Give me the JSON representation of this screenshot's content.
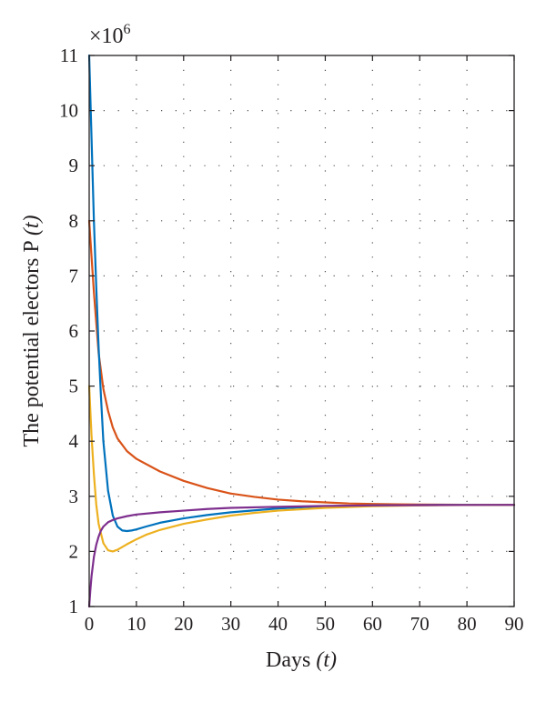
{
  "chart_data": {
    "type": "line",
    "title": "",
    "xlabel": "Days",
    "xlabel_var": "(t)",
    "ylabel": "The potential electors P",
    "ylabel_var": "(t)",
    "y_multiplier_label": "×10",
    "y_multiplier_exp": "6",
    "xlim": [
      0,
      90
    ],
    "ylim": [
      1,
      11
    ],
    "x_ticks": [
      0,
      10,
      20,
      30,
      40,
      50,
      60,
      70,
      80,
      90
    ],
    "y_ticks": [
      1,
      2,
      3,
      4,
      5,
      6,
      7,
      8,
      9,
      10,
      11
    ],
    "grid": true,
    "legend": "none",
    "series": [
      {
        "color": "#d95319",
        "x": [
          0,
          1,
          2,
          3,
          4,
          5,
          6,
          8,
          10,
          15,
          20,
          25,
          30,
          35,
          40,
          45,
          50,
          55,
          60,
          65,
          70,
          75,
          80,
          85,
          90
        ],
        "y": [
          8,
          6.7,
          5.6,
          4.95,
          4.55,
          4.25,
          4.05,
          3.82,
          3.68,
          3.45,
          3.28,
          3.15,
          3.05,
          2.99,
          2.94,
          2.91,
          2.89,
          2.87,
          2.86,
          2.855,
          2.85,
          2.848,
          2.846,
          2.845,
          2.845
        ]
      },
      {
        "color": "#0072bd",
        "x": [
          0,
          0.5,
          1,
          1.5,
          2,
          2.5,
          3,
          4,
          5,
          6,
          7,
          8,
          9,
          10,
          12,
          15,
          20,
          25,
          30,
          40,
          50,
          60,
          70,
          80,
          90
        ],
        "y": [
          11,
          9.5,
          8.0,
          6.8,
          5.7,
          4.8,
          4.0,
          3.1,
          2.65,
          2.45,
          2.38,
          2.37,
          2.38,
          2.4,
          2.45,
          2.52,
          2.6,
          2.66,
          2.71,
          2.78,
          2.82,
          2.835,
          2.84,
          2.845,
          2.845
        ]
      },
      {
        "color": "#edb120",
        "x": [
          0,
          0.5,
          1,
          1.5,
          2,
          3,
          4,
          5,
          6,
          7,
          8,
          10,
          12,
          15,
          20,
          25,
          30,
          35,
          40,
          50,
          60,
          70,
          80,
          90
        ],
        "y": [
          5,
          4.1,
          3.4,
          2.85,
          2.5,
          2.15,
          2.02,
          2.0,
          2.03,
          2.08,
          2.13,
          2.22,
          2.3,
          2.39,
          2.5,
          2.58,
          2.65,
          2.7,
          2.74,
          2.79,
          2.82,
          2.835,
          2.842,
          2.845
        ]
      },
      {
        "color": "#7e2f8e",
        "x": [
          0,
          0.25,
          0.5,
          1,
          1.5,
          2,
          2.5,
          3,
          4,
          5,
          6,
          8,
          10,
          15,
          20,
          25,
          30,
          40,
          50,
          60,
          70,
          80,
          90
        ],
        "y": [
          1,
          1.3,
          1.55,
          1.9,
          2.12,
          2.27,
          2.38,
          2.45,
          2.53,
          2.57,
          2.6,
          2.64,
          2.67,
          2.71,
          2.74,
          2.77,
          2.79,
          2.81,
          2.825,
          2.835,
          2.84,
          2.843,
          2.845
        ]
      }
    ]
  }
}
